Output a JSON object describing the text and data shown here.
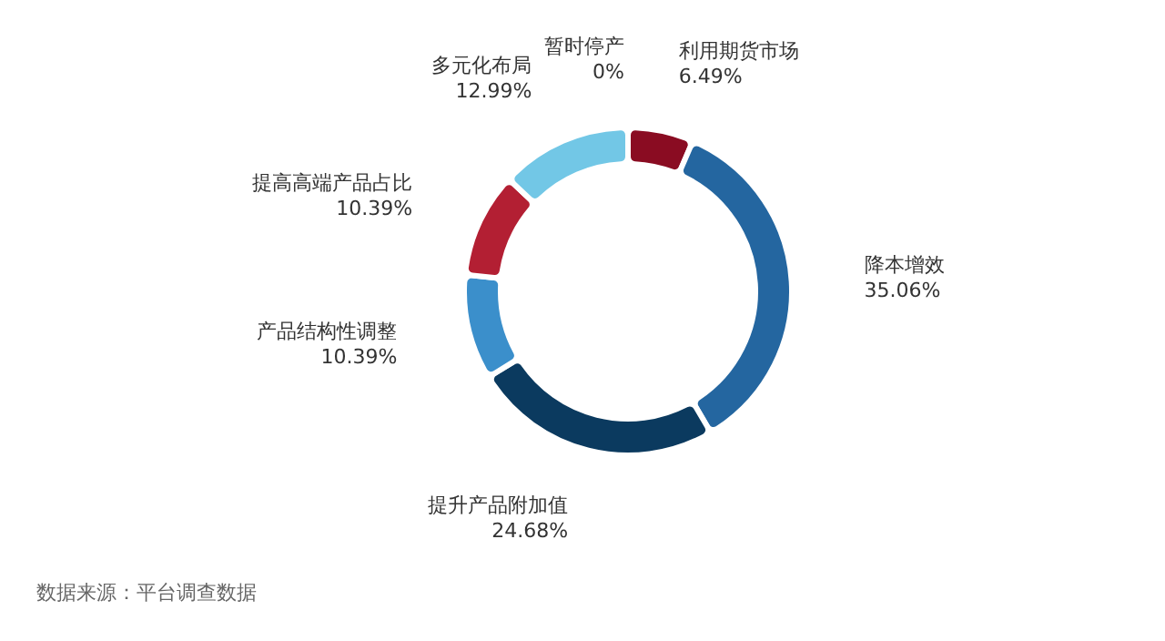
{
  "chart_data": {
    "type": "donut",
    "categories": [
      "利用期货市场",
      "降本增效",
      "提升产品附加值",
      "产品结构性调整",
      "提高高端产品占比",
      "多元化布局",
      "暂时停产"
    ],
    "values": [
      6.49,
      35.06,
      24.68,
      10.39,
      10.39,
      12.99,
      0
    ],
    "colors": [
      "#8a0c22",
      "#2466a0",
      "#0b3a5f",
      "#3b8fcb",
      "#b31f33",
      "#72c7e6",
      "#e8a33a"
    ],
    "value_labels": [
      "6.49%",
      "35.06%",
      "24.68%",
      "10.39%",
      "10.39%",
      "12.99%",
      "0%"
    ],
    "annotations": [
      "数据来源：平台调查数据"
    ]
  }
}
